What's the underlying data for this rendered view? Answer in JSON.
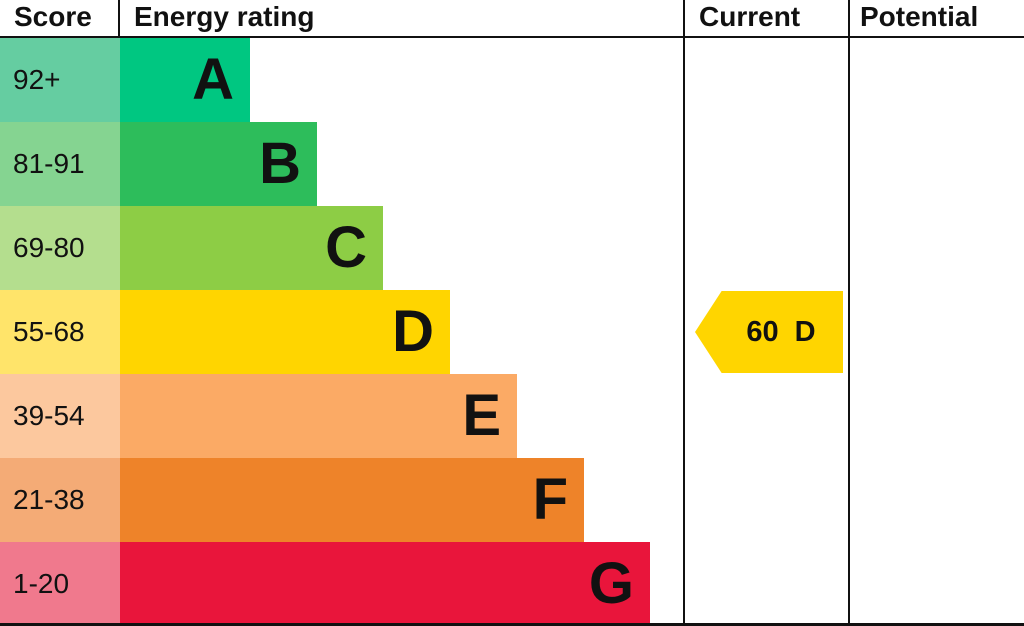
{
  "header": {
    "score": "Score",
    "energy_rating": "Energy rating",
    "current": "Current",
    "potential": "Potential"
  },
  "chart_data": {
    "type": "bar",
    "title": "Energy rating",
    "bands": [
      {
        "score_range": "92+",
        "letter": "A",
        "bar_color": "#00c781",
        "score_cell_color": "#65cda1"
      },
      {
        "score_range": "81-91",
        "letter": "B",
        "bar_color": "#2dbd5b",
        "score_cell_color": "#85d491"
      },
      {
        "score_range": "69-80",
        "letter": "C",
        "bar_color": "#8dcd45",
        "score_cell_color": "#b4de8e"
      },
      {
        "score_range": "55-68",
        "letter": "D",
        "bar_color": "#ffd500",
        "score_cell_color": "#ffe46a"
      },
      {
        "score_range": "39-54",
        "letter": "E",
        "bar_color": "#fbaa65",
        "score_cell_color": "#fcc89e"
      },
      {
        "score_range": "21-38",
        "letter": "F",
        "bar_color": "#ee8329",
        "score_cell_color": "#f4ab76"
      },
      {
        "score_range": "1-20",
        "letter": "G",
        "bar_color": "#e9153b",
        "score_cell_color": "#f0798d"
      }
    ],
    "current": {
      "score": "60",
      "rating": "D",
      "color": "#ffd500"
    }
  }
}
